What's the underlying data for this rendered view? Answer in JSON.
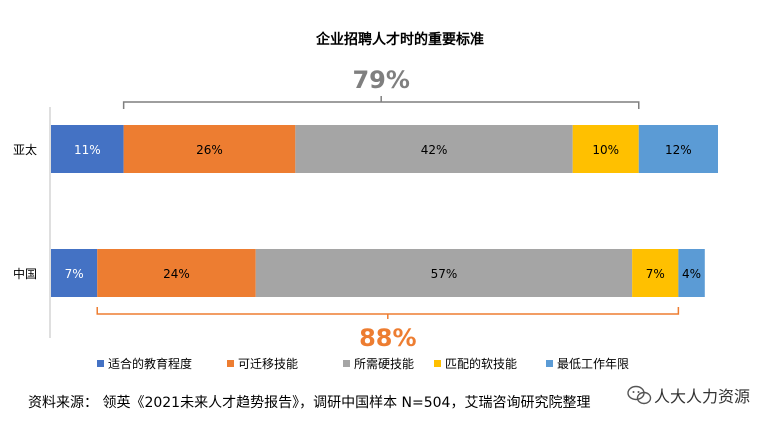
{
  "chart_data": {
    "type": "bar",
    "orientation": "horizontal",
    "stacked": true,
    "title": "企业招聘人才时的重要标准",
    "categories": [
      "亚太",
      "中国"
    ],
    "series": [
      {
        "name": "适合的教育程度",
        "color": "#4472C4",
        "values": [
          11,
          7
        ]
      },
      {
        "name": "可迁移技能",
        "color": "#ED7D31",
        "values": [
          26,
          24
        ]
      },
      {
        "name": "所需硬技能",
        "color": "#A5A5A5",
        "values": [
          42,
          57
        ]
      },
      {
        "name": "匹配的软技能",
        "color": "#FFC000",
        "values": [
          10,
          7
        ]
      },
      {
        "name": "最低工作年限",
        "color": "#5B9BD5",
        "values": [
          12,
          4
        ]
      }
    ],
    "annotations": [
      {
        "text": "79%",
        "category": "亚太",
        "from_series": 1,
        "to_series": 3,
        "position": "above",
        "color": "#7F7F7F"
      },
      {
        "text": "88%",
        "category": "中国",
        "from_series": 1,
        "to_series": 3,
        "position": "below",
        "color": "#ED7D31"
      }
    ],
    "legend_position": "bottom",
    "grid": false,
    "xlim": [
      0,
      101
    ]
  },
  "source": "资料来源：  领英《2021未来人才趋势报告》，调研中国样本 N=504，艾瑞咨询研究院整理",
  "watermark": "人大人力资源",
  "watermark_icon": "wechat-icon"
}
